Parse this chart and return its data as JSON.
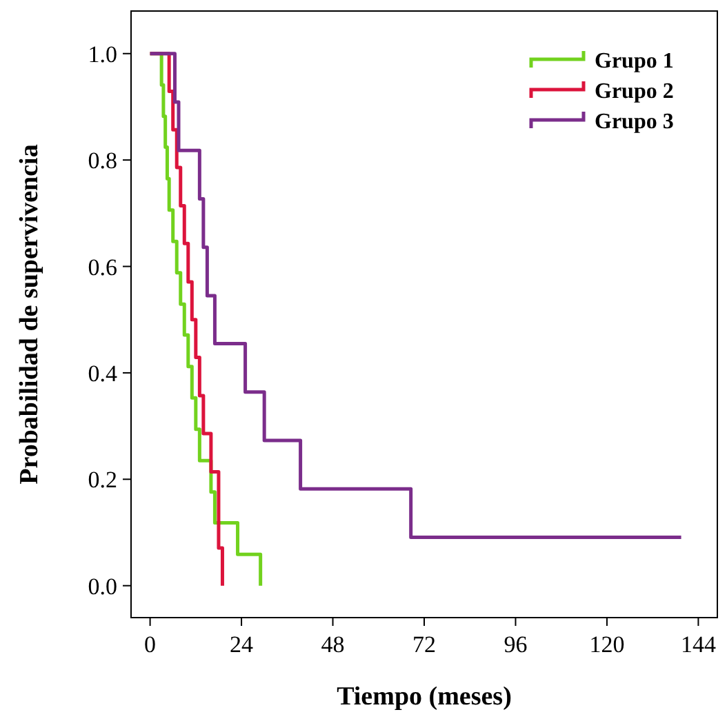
{
  "chart_data": {
    "type": "step",
    "xlabel": "Tiempo (meses)",
    "ylabel": "Probabilidad de supervivencia",
    "xlim": [
      -5,
      149
    ],
    "ylim": [
      -0.06,
      1.08
    ],
    "xticks": [
      0,
      24,
      48,
      72,
      96,
      120,
      144
    ],
    "yticks": [
      {
        "value": 0,
        "label": "0.0"
      },
      {
        "value": 0.2,
        "label": "0.2"
      },
      {
        "value": 0.4,
        "label": "0.4"
      },
      {
        "value": 0.6,
        "label": "0.6"
      },
      {
        "value": 0.8,
        "label": "0.8"
      },
      {
        "value": 1,
        "label": "1.0"
      }
    ],
    "grid": false,
    "legend": "top right",
    "marker": "none",
    "line_style": "solid",
    "series": [
      {
        "name": "Grupo 1",
        "color": "#72d21e",
        "x": [
          0,
          3,
          3.5,
          4,
          4.5,
          5,
          6,
          7,
          8,
          9,
          10,
          11,
          12,
          13,
          14,
          16,
          17,
          23,
          29
        ],
        "values": [
          1,
          0.941,
          0.882,
          0.824,
          0.765,
          0.706,
          0.647,
          0.588,
          0.529,
          0.471,
          0.412,
          0.353,
          0.294,
          0.235,
          0.235,
          0.176,
          0.118,
          0.059,
          0
        ]
      },
      {
        "name": "Grupo 2",
        "color": "#dc143c",
        "x": [
          0,
          5,
          6,
          7,
          8,
          9,
          10,
          11,
          12,
          13,
          14,
          15,
          16,
          18,
          19
        ],
        "values": [
          1,
          0.929,
          0.857,
          0.786,
          0.714,
          0.643,
          0.571,
          0.5,
          0.429,
          0.357,
          0.286,
          0.286,
          0.214,
          0.071,
          0
        ]
      },
      {
        "name": "Grupo 3",
        "color": "#7b2d8b",
        "x": [
          0,
          6.5,
          7.5,
          13,
          14,
          15,
          17,
          25,
          30,
          39.5,
          68.5,
          139.5
        ],
        "values": [
          1,
          0.909,
          0.818,
          0.727,
          0.636,
          0.545,
          0.455,
          0.364,
          0.273,
          0.182,
          0.091,
          0.091
        ]
      }
    ]
  }
}
